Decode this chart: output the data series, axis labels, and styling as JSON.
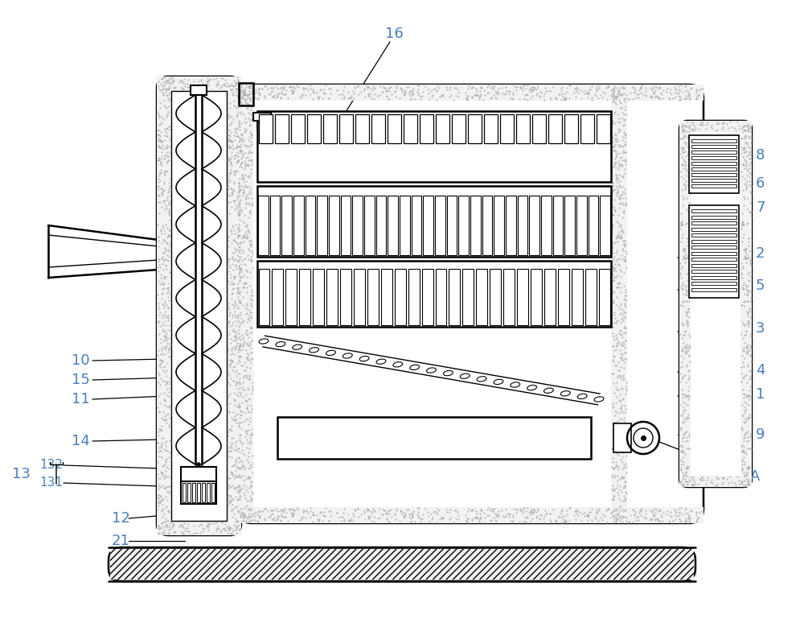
{
  "bg_color": "#ffffff",
  "line_color": "#000000",
  "label_color": "#4a7ebf",
  "figsize": [
    10.0,
    7.69
  ],
  "dpi": 100,
  "lw_main": 1.8,
  "lw_thin": 1.0,
  "dot_color": "#999999",
  "label_fs": 13,
  "label_fs_sm": 11,
  "right_labels": [
    [
      "8",
      940,
      195
    ],
    [
      "6",
      940,
      228
    ],
    [
      "7",
      940,
      258
    ],
    [
      "2",
      940,
      318
    ],
    [
      "5",
      940,
      358
    ],
    [
      "3",
      940,
      408
    ],
    [
      "4",
      940,
      458
    ],
    [
      "1",
      940,
      490
    ],
    [
      "9",
      940,
      540
    ]
  ],
  "left_labels": [
    [
      "10",
      112,
      448
    ],
    [
      "15",
      112,
      472
    ],
    [
      "11",
      112,
      496
    ]
  ]
}
